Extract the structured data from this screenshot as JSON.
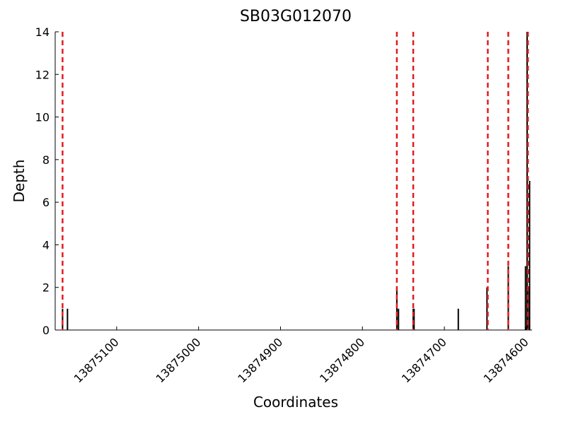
{
  "chart_data": {
    "type": "bar",
    "title": "SB03G012070",
    "xlabel": "Coordinates",
    "ylabel": "Depth",
    "x": [
      13875166,
      13875160,
      13874758,
      13874756,
      13874738,
      13874737,
      13874683,
      13874648,
      13874622,
      13874601,
      13874599,
      13874597,
      13874596
    ],
    "values": [
      1,
      1,
      2,
      1,
      1,
      1,
      1,
      2,
      3,
      3,
      14,
      2,
      7
    ],
    "color": "#000000",
    "vlines": {
      "x": [
        13875166,
        13874758,
        13874738,
        13874647,
        13874622,
        13874598
      ],
      "color": "#e41a1c"
    },
    "xlim": [
      13875175,
      13874593
    ],
    "xticks": [
      13875100,
      13875000,
      13874900,
      13874800,
      13874700,
      13874600
    ],
    "ylim": [
      0,
      14
    ],
    "yticks": [
      0,
      2,
      4,
      6,
      8,
      10,
      12,
      14
    ]
  }
}
